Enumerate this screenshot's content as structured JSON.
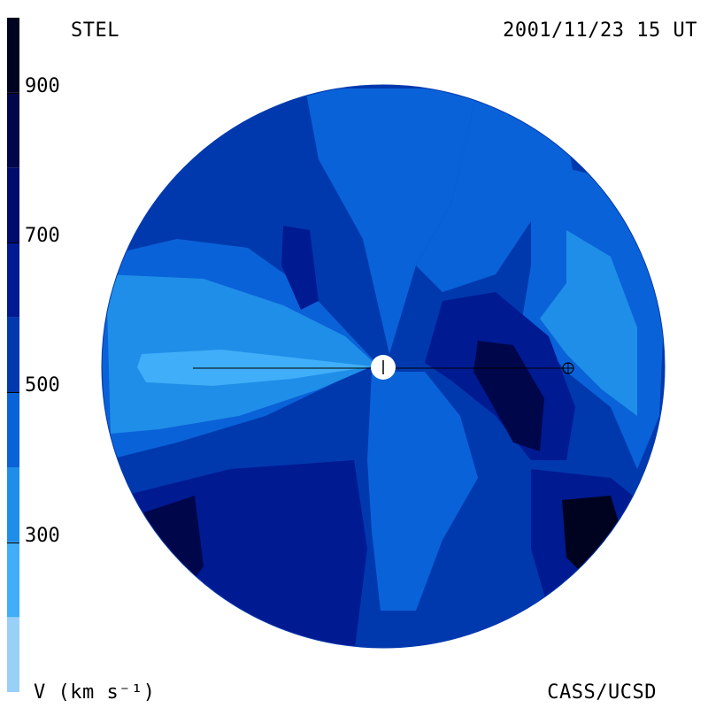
{
  "header": {
    "instrument": "STEL",
    "timestamp": "2001/11/23 15 UT"
  },
  "footer": {
    "credit": "CASS/UCSD"
  },
  "colorbar": {
    "unit_label": "V (km s⁻¹)",
    "ticks": [
      {
        "value": 900,
        "label": "900"
      },
      {
        "value": 700,
        "label": "700"
      },
      {
        "value": 500,
        "label": "500"
      },
      {
        "value": 300,
        "label": "300"
      }
    ],
    "range": [
      100,
      1000
    ],
    "bands": [
      {
        "from": 100,
        "to": 200,
        "color": "#99d0f8"
      },
      {
        "from": 200,
        "to": 300,
        "color": "#40aef8"
      },
      {
        "from": 300,
        "to": 400,
        "color": "#1f8ee8"
      },
      {
        "from": 400,
        "to": 500,
        "color": "#0a62d8"
      },
      {
        "from": 500,
        "to": 600,
        "color": "#0039ae"
      },
      {
        "from": 600,
        "to": 700,
        "color": "#001a92"
      },
      {
        "from": 700,
        "to": 800,
        "color": "#000c6c"
      },
      {
        "from": 800,
        "to": 900,
        "color": "#00064a"
      },
      {
        "from": 900,
        "to": 1000,
        "color": "#00031f"
      }
    ]
  },
  "map": {
    "background_color": "#0039ae",
    "sun_color": "#ffffff",
    "earth_marker": "earth-symbol"
  }
}
